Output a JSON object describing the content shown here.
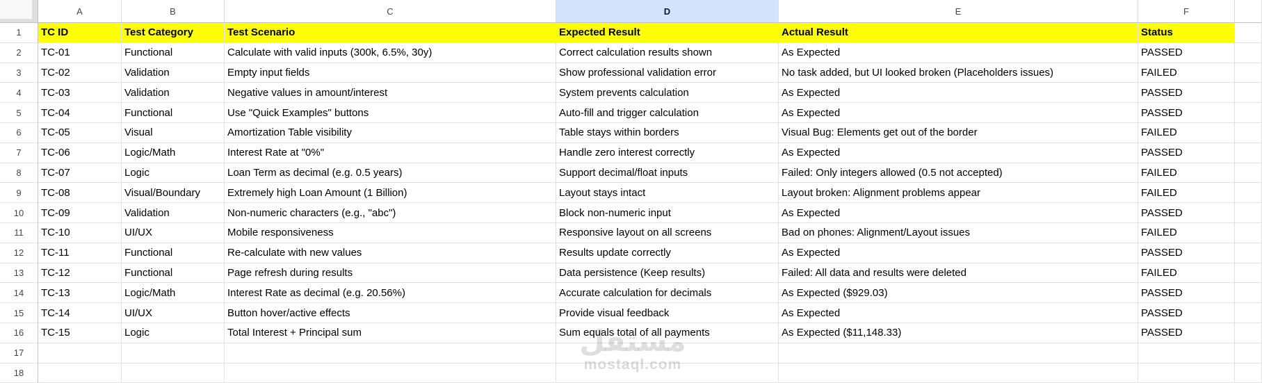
{
  "sheet": {
    "selected_column": "D",
    "column_letters": [
      "A",
      "B",
      "C",
      "D",
      "E",
      "F"
    ],
    "fields": [
      "tc_id",
      "category",
      "scenario",
      "expected",
      "actual",
      "status"
    ],
    "header_row": {
      "tc_id": "TC ID",
      "category": "Test Category",
      "scenario": "Test Scenario",
      "expected": "Expected Result",
      "actual": "Actual Result",
      "status": "Status"
    },
    "rows": [
      {
        "row": 2,
        "tc_id": "TC-01",
        "category": "Functional",
        "scenario": "Calculate with valid inputs (300k, 6.5%, 30y)",
        "expected": "Correct calculation results shown",
        "actual": "As Expected",
        "status": "PASSED"
      },
      {
        "row": 3,
        "tc_id": "TC-02",
        "category": "Validation",
        "scenario": "Empty input fields",
        "expected": "Show professional validation error",
        "actual": "No task added, but UI looked broken (Placeholders issues)",
        "status": "FAILED"
      },
      {
        "row": 4,
        "tc_id": "TC-03",
        "category": "Validation",
        "scenario": "Negative values in amount/interest",
        "expected": "System prevents calculation",
        "actual": "As Expected",
        "status": "PASSED"
      },
      {
        "row": 5,
        "tc_id": "TC-04",
        "category": "Functional",
        "scenario": "Use \"Quick Examples\" buttons",
        "expected": "Auto-fill and trigger calculation",
        "actual": "As Expected",
        "status": "PASSED"
      },
      {
        "row": 6,
        "tc_id": "TC-05",
        "category": "Visual",
        "scenario": "Amortization Table visibility",
        "expected": "Table stays within borders",
        "actual": "Visual Bug: Elements get out of the border",
        "status": "FAILED"
      },
      {
        "row": 7,
        "tc_id": "TC-06",
        "category": "Logic/Math",
        "scenario": "Interest Rate at \"0%\"",
        "expected": "Handle zero interest correctly",
        "actual": "As Expected",
        "status": "PASSED"
      },
      {
        "row": 8,
        "tc_id": "TC-07",
        "category": "Logic",
        "scenario": "Loan Term as decimal (e.g. 0.5 years)",
        "expected": "Support decimal/float inputs",
        "actual": "Failed: Only integers allowed (0.5 not accepted)",
        "status": "FAILED"
      },
      {
        "row": 9,
        "tc_id": "TC-08",
        "category": "Visual/Boundary",
        "scenario": "Extremely high Loan Amount (1 Billion)",
        "expected": "Layout stays intact",
        "actual": "Layout broken: Alignment problems appear",
        "status": "FAILED"
      },
      {
        "row": 10,
        "tc_id": "TC-09",
        "category": "Validation",
        "scenario": "Non-numeric characters (e.g., \"abc\")",
        "expected": "Block non-numeric input",
        "actual": "As Expected",
        "status": "PASSED"
      },
      {
        "row": 11,
        "tc_id": "TC-10",
        "category": "UI/UX",
        "scenario": "Mobile responsiveness",
        "expected": "Responsive layout on all screens",
        "actual": "Bad on phones: Alignment/Layout issues",
        "status": "FAILED"
      },
      {
        "row": 12,
        "tc_id": "TC-11",
        "category": "Functional",
        "scenario": "Re-calculate with new values",
        "expected": "Results update correctly",
        "actual": "As Expected",
        "status": "PASSED"
      },
      {
        "row": 13,
        "tc_id": "TC-12",
        "category": "Functional",
        "scenario": "Page refresh during results",
        "expected": "Data persistence (Keep results)",
        "actual": "Failed: All data and results were deleted",
        "status": "FAILED"
      },
      {
        "row": 14,
        "tc_id": "TC-13",
        "category": "Logic/Math",
        "scenario": "Interest Rate as decimal (e.g. 20.56%)",
        "expected": "Accurate calculation for decimals",
        "actual": "As Expected ($929.03)",
        "status": "PASSED"
      },
      {
        "row": 15,
        "tc_id": "TC-14",
        "category": "UI/UX",
        "scenario": "Button hover/active effects",
        "expected": "Provide visual feedback",
        "actual": "As Expected",
        "status": "PASSED"
      },
      {
        "row": 16,
        "tc_id": "TC-15",
        "category": "Logic",
        "scenario": "Total Interest + Principal sum",
        "expected": "Sum equals total of all payments",
        "actual": "As Expected ($11,148.33)",
        "status": "PASSED"
      }
    ],
    "empty_rows": [
      17,
      18
    ]
  },
  "watermark": {
    "logo": "مستقل",
    "domain": "mostaql.com"
  },
  "colors": {
    "header_fill": "#ffff00",
    "selected_column_fill": "#d3e3fd"
  }
}
